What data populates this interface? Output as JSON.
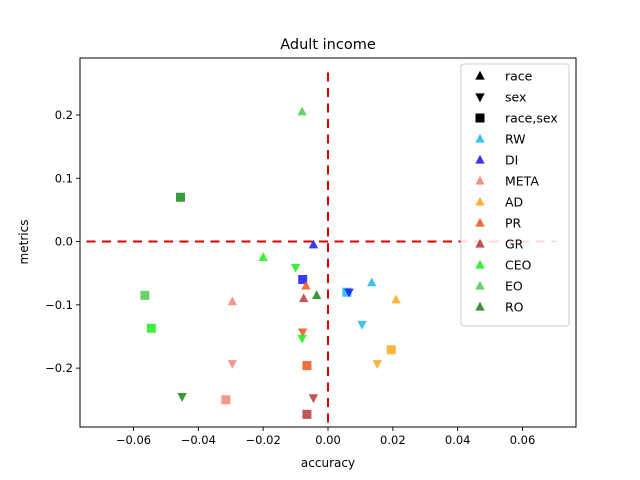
{
  "chart_data": {
    "type": "scatter",
    "title": "Adult income",
    "xlabel": "accuracy",
    "ylabel": "metrics",
    "xlim": [
      -0.0765,
      0.0765
    ],
    "ylim": [
      -0.293,
      0.29
    ],
    "xticks": [
      -0.06,
      -0.04,
      -0.02,
      0.0,
      0.02,
      0.04,
      0.06
    ],
    "xtick_labels": [
      "−0.06",
      "−0.04",
      "−0.02",
      "0.00",
      "0.02",
      "0.04",
      "0.06"
    ],
    "yticks": [
      -0.2,
      -0.1,
      0.0,
      0.1,
      0.2
    ],
    "ytick_labels": [
      "−0.2",
      "−0.1",
      "0.0",
      "0.1",
      "0.2"
    ],
    "grid": false,
    "legend_position": "top-right",
    "reference_lines": [
      {
        "orientation": "horizontal",
        "value": 0.0,
        "color": "#dd0000",
        "style": "dashed"
      },
      {
        "orientation": "vertical",
        "value": 0.0,
        "color": "#dd0000",
        "style": "dashed"
      }
    ],
    "marker_legend": [
      {
        "label": "race",
        "marker": "triangle-up"
      },
      {
        "label": "sex",
        "marker": "triangle-down"
      },
      {
        "label": "race,sex",
        "marker": "square"
      }
    ],
    "series": [
      {
        "name": "RW",
        "color": "#22bbee",
        "points": [
          {
            "x": 0.0135,
            "y": -0.065,
            "marker": "triangle-up"
          },
          {
            "x": 0.0105,
            "y": -0.131,
            "marker": "triangle-down"
          },
          {
            "x": 0.0058,
            "y": -0.08,
            "marker": "square"
          }
        ]
      },
      {
        "name": "DI",
        "color": "#1f1fee",
        "points": [
          {
            "x": -0.0045,
            "y": -0.005,
            "marker": "triangle-up"
          },
          {
            "x": 0.0065,
            "y": -0.08,
            "marker": "triangle-down"
          },
          {
            "x": -0.0078,
            "y": -0.06,
            "marker": "square"
          }
        ]
      },
      {
        "name": "META",
        "color": "#f08a80",
        "points": [
          {
            "x": -0.0295,
            "y": -0.095,
            "marker": "triangle-up"
          },
          {
            "x": -0.0295,
            "y": -0.193,
            "marker": "triangle-down"
          },
          {
            "x": -0.0315,
            "y": -0.25,
            "marker": "square"
          }
        ]
      },
      {
        "name": "AD",
        "color": "#f9aa20",
        "points": [
          {
            "x": 0.021,
            "y": -0.092,
            "marker": "triangle-up"
          },
          {
            "x": 0.0152,
            "y": -0.193,
            "marker": "triangle-down"
          },
          {
            "x": 0.0195,
            "y": -0.171,
            "marker": "square"
          }
        ]
      },
      {
        "name": "PR",
        "color": "#f25a22",
        "points": [
          {
            "x": -0.0068,
            "y": -0.07,
            "marker": "triangle-up"
          },
          {
            "x": -0.0078,
            "y": -0.143,
            "marker": "triangle-down"
          },
          {
            "x": -0.0065,
            "y": -0.196,
            "marker": "square"
          }
        ]
      },
      {
        "name": "GR",
        "color": "#b5403e",
        "points": [
          {
            "x": -0.0075,
            "y": -0.09,
            "marker": "triangle-up"
          },
          {
            "x": -0.0045,
            "y": -0.247,
            "marker": "triangle-down"
          },
          {
            "x": -0.0065,
            "y": -0.273,
            "marker": "square"
          }
        ]
      },
      {
        "name": "CEO",
        "color": "#22ee22",
        "points": [
          {
            "x": -0.02,
            "y": -0.025,
            "marker": "triangle-up"
          },
          {
            "x": -0.01,
            "y": -0.041,
            "marker": "triangle-down"
          },
          {
            "x": -0.008,
            "y": -0.153,
            "marker": "triangle-down"
          },
          {
            "x": -0.0545,
            "y": -0.137,
            "marker": "square"
          }
        ]
      },
      {
        "name": "EO",
        "color": "#55cc55",
        "points": [
          {
            "x": -0.008,
            "y": 0.205,
            "marker": "triangle-up"
          },
          {
            "x": -0.0565,
            "y": -0.085,
            "marker": "square"
          }
        ]
      },
      {
        "name": "RO",
        "color": "#228b22",
        "points": [
          {
            "x": -0.0035,
            "y": -0.085,
            "marker": "triangle-up"
          },
          {
            "x": -0.045,
            "y": -0.245,
            "marker": "triangle-down"
          },
          {
            "x": -0.0455,
            "y": 0.07,
            "marker": "square"
          }
        ]
      }
    ]
  }
}
